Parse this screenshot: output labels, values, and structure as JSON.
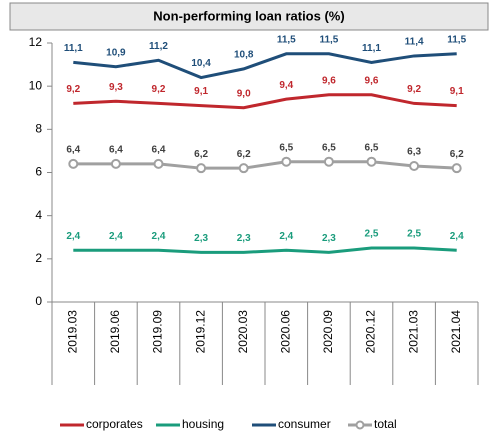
{
  "chart_data": {
    "type": "line",
    "title": "Non-performing loan ratios (%)",
    "categories": [
      "2019.03",
      "2019.06",
      "2019.09",
      "2019.12",
      "2020.03",
      "2020.06",
      "2020.09",
      "2020.12",
      "2021.03",
      "2021.04"
    ],
    "series": [
      {
        "name": "corporates",
        "color": "#c0272d",
        "values": [
          9.2,
          9.3,
          9.2,
          9.1,
          9.0,
          9.4,
          9.6,
          9.6,
          9.2,
          9.1
        ],
        "value_labels": [
          "9,2",
          "9,3",
          "9,2",
          "9,1",
          "9,0",
          "9,4",
          "9,6",
          "9,6",
          "9,2",
          "9,1"
        ]
      },
      {
        "name": "housing",
        "color": "#1a9c7c",
        "values": [
          2.4,
          2.4,
          2.4,
          2.3,
          2.3,
          2.4,
          2.3,
          2.5,
          2.5,
          2.4
        ],
        "value_labels": [
          "2,4",
          "2,4",
          "2,4",
          "2,3",
          "2,3",
          "2,4",
          "2,3",
          "2,5",
          "2,5",
          "2,4"
        ]
      },
      {
        "name": "consumer",
        "color": "#1f4e79",
        "values": [
          11.1,
          10.9,
          11.2,
          10.4,
          10.8,
          11.5,
          11.5,
          11.1,
          11.4,
          11.5
        ],
        "value_labels": [
          "11,1",
          "10,9",
          "11,2",
          "10,4",
          "10,8",
          "11,5",
          "11,5",
          "11,1",
          "11,4",
          "11,5"
        ]
      },
      {
        "name": "total",
        "color": "#a0a0a0",
        "values": [
          6.4,
          6.4,
          6.4,
          6.2,
          6.2,
          6.5,
          6.5,
          6.5,
          6.3,
          6.2
        ],
        "value_labels": [
          "6,4",
          "6,4",
          "6,4",
          "6,2",
          "6,2",
          "6,5",
          "6,5",
          "6,5",
          "6,3",
          "6,2"
        ]
      }
    ],
    "ylim": [
      0,
      12
    ],
    "yticks": [
      0,
      2,
      4,
      6,
      8,
      10,
      12
    ],
    "grid": false,
    "legend": "bottom"
  }
}
